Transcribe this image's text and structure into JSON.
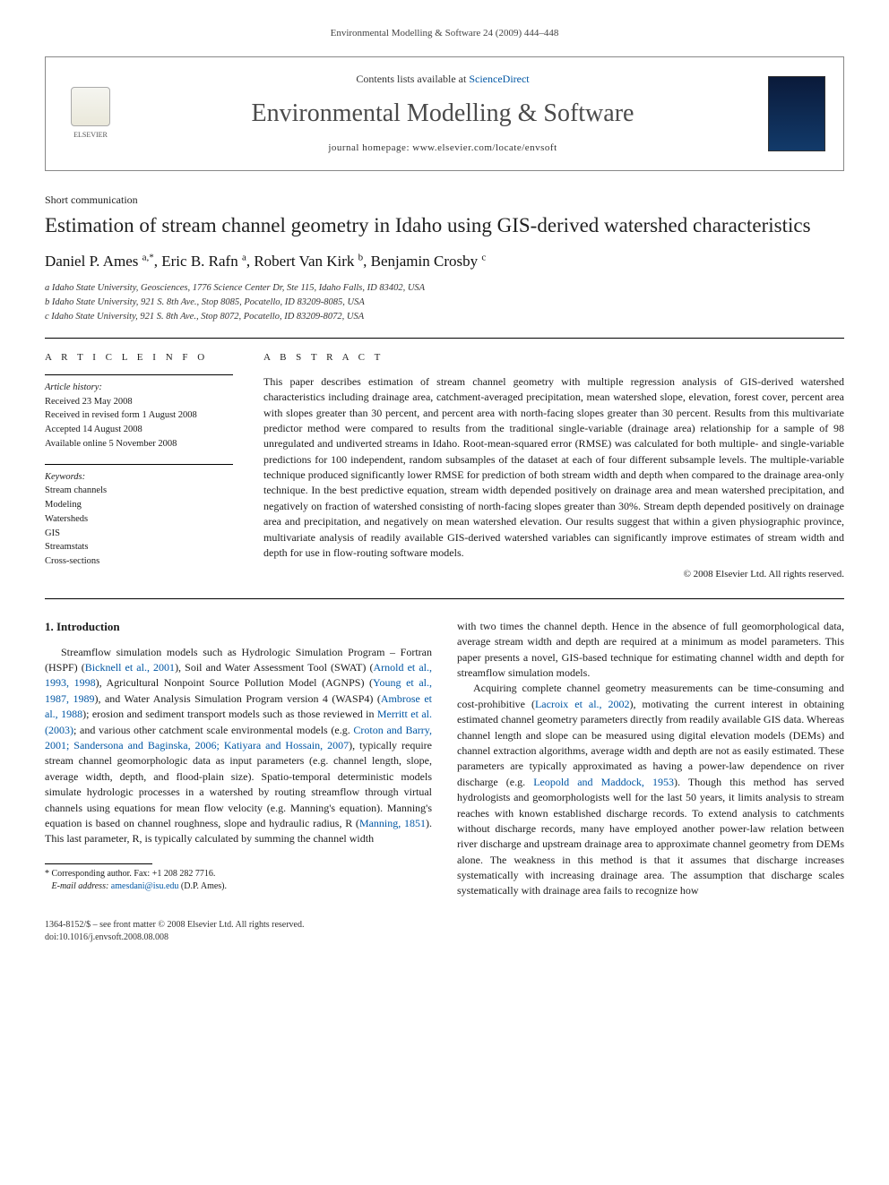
{
  "running_head": "Environmental Modelling & Software 24 (2009) 444–448",
  "header": {
    "contents_prefix": "Contents lists available at ",
    "contents_link": "ScienceDirect",
    "journal_name": "Environmental Modelling & Software",
    "homepage_label": "journal homepage: ",
    "homepage_url": "www.elsevier.com/locate/envsoft",
    "publisher": "ELSEVIER"
  },
  "article_type": "Short communication",
  "title": "Estimation of stream channel geometry in Idaho using GIS-derived watershed characteristics",
  "authors_html": "Daniel P. Ames <sup>a,*</sup>, Eric B. Rafn <sup>a</sup>, Robert Van Kirk <sup>b</sup>, Benjamin Crosby <sup>c</sup>",
  "affiliations": [
    "a Idaho State University, Geosciences, 1776 Science Center Dr, Ste 115, Idaho Falls, ID 83402, USA",
    "b Idaho State University, 921 S. 8th Ave., Stop 8085, Pocatello, ID 83209-8085, USA",
    "c Idaho State University, 921 S. 8th Ave., Stop 8072, Pocatello, ID 83209-8072, USA"
  ],
  "info": {
    "section_label": "A R T I C L E   I N F O",
    "history_head": "Article history:",
    "history": [
      "Received 23 May 2008",
      "Received in revised form 1 August 2008",
      "Accepted 14 August 2008",
      "Available online 5 November 2008"
    ],
    "keywords_head": "Keywords:",
    "keywords": [
      "Stream channels",
      "Modeling",
      "Watersheds",
      "GIS",
      "Streamstats",
      "Cross-sections"
    ]
  },
  "abstract": {
    "section_label": "A B S T R A C T",
    "text": "This paper describes estimation of stream channel geometry with multiple regression analysis of GIS-derived watershed characteristics including drainage area, catchment-averaged precipitation, mean watershed slope, elevation, forest cover, percent area with slopes greater than 30 percent, and percent area with north-facing slopes greater than 30 percent. Results from this multivariate predictor method were compared to results from the traditional single-variable (drainage area) relationship for a sample of 98 unregulated and undiverted streams in Idaho. Root-mean-squared error (RMSE) was calculated for both multiple- and single-variable predictions for 100 independent, random subsamples of the dataset at each of four different subsample levels. The multiple-variable technique produced significantly lower RMSE for prediction of both stream width and depth when compared to the drainage area-only technique. In the best predictive equation, stream width depended positively on drainage area and mean watershed precipitation, and negatively on fraction of watershed consisting of north-facing slopes greater than 30%. Stream depth depended positively on drainage area and precipitation, and negatively on mean watershed elevation. Our results suggest that within a given physiographic province, multivariate analysis of readily available GIS-derived watershed variables can significantly improve estimates of stream width and depth for use in flow-routing software models.",
    "copyright": "© 2008 Elsevier Ltd. All rights reserved."
  },
  "body": {
    "heading": "1. Introduction",
    "para1_a": "Streamflow simulation models such as Hydrologic Simulation Program – Fortran (HSPF) (",
    "ref1": "Bicknell et al., 2001",
    "para1_b": "), Soil and Water Assessment Tool (SWAT) (",
    "ref2": "Arnold et al., 1993, 1998",
    "para1_c": "), Agricultural Nonpoint Source Pollution Model (AGNPS) (",
    "ref3": "Young et al., 1987, 1989",
    "para1_d": "), and Water Analysis Simulation Program version 4 (WASP4) (",
    "ref4": "Ambrose et al., 1988",
    "para1_e": "); erosion and sediment transport models such as those reviewed in ",
    "ref5": "Merritt et al. (2003)",
    "para1_f": "; and various other catchment scale environmental models (e.g. ",
    "ref6": "Croton and Barry, 2001; Sandersona and Baginska, 2006; Katiyara and Hossain, 2007",
    "para1_g": "), typically require stream channel geomorphologic data as input parameters (e.g. channel length, slope, average width, depth, and flood-plain size). Spatio-temporal deterministic models simulate hydrologic processes in a watershed by routing streamflow through virtual channels using equations for mean flow velocity (e.g. Manning's equation). Manning's equation is based on channel roughness, slope and hydraulic radius, R (",
    "ref7": "Manning, 1851",
    "para1_h": "). This last parameter, R, is typically calculated by summing the channel width",
    "para1_col2": "with two times the channel depth. Hence in the absence of full geomorphological data, average stream width and depth are required at a minimum as model parameters. This paper presents a novel, GIS-based technique for estimating channel width and depth for streamflow simulation models.",
    "para2_a": "Acquiring complete channel geometry measurements can be time-consuming and cost-prohibitive (",
    "ref8": "Lacroix et al., 2002",
    "para2_b": "), motivating the current interest in obtaining estimated channel geometry parameters directly from readily available GIS data. Whereas channel length and slope can be measured using digital elevation models (DEMs) and channel extraction algorithms, average width and depth are not as easily estimated. These parameters are typically approximated as having a power-law dependence on river discharge (e.g. ",
    "ref9": "Leopold and Maddock, 1953",
    "para2_c": "). Though this method has served hydrologists and geomorphologists well for the last 50 years, it limits analysis to stream reaches with known established discharge records. To extend analysis to catchments without discharge records, many have employed another power-law relation between river discharge and upstream drainage area to approximate channel geometry from DEMs alone. The weakness in this method is that it assumes that discharge increases systematically with increasing drainage area. The assumption that discharge scales systematically with drainage area fails to recognize how"
  },
  "footnote": {
    "corr": "* Corresponding author. Fax: +1 208 282 7716.",
    "email_label": "E-mail address: ",
    "email": "amesdani@isu.edu",
    "email_suffix": " (D.P. Ames)."
  },
  "footer": {
    "line1": "1364-8152/$ – see front matter © 2008 Elsevier Ltd. All rights reserved.",
    "line2": "doi:10.1016/j.envsoft.2008.08.008"
  },
  "colors": {
    "link": "#0056a3",
    "text": "#1a1a1a",
    "muted": "#4a4a4a"
  }
}
